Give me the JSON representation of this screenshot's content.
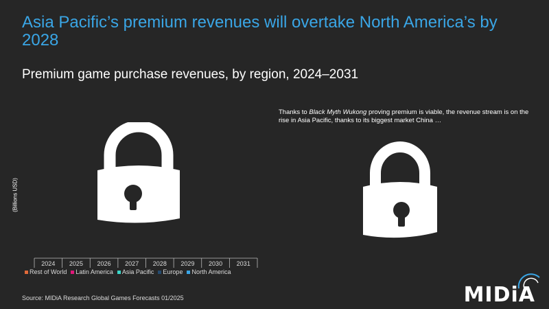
{
  "title": "Asia Pacific’s premium revenues will overtake North America’s by 2028",
  "subtitle": "Premium game purchase revenues, by region, 2024–2031",
  "note_pre": "Thanks to ",
  "note_em": "Black Myth Wukong",
  "note_post": " proving premium is viable, the revenue stream is on the rise in Asia Pacific, thanks to its biggest market China …",
  "source": "Source: MIDiA Research Global Games Forecasts 01/2025",
  "logo": "MIDiA",
  "icons": [
    "lock-icon",
    "lock-icon"
  ],
  "chart_data": {
    "type": "bar",
    "ylabel": "(Billions USD)",
    "categories": [
      "2024",
      "2025",
      "2026",
      "2027",
      "2028",
      "2029",
      "2030",
      "2031"
    ],
    "legend_position": "bottom",
    "series": [
      {
        "name": "Rest of World",
        "color": "#e06a3a"
      },
      {
        "name": "Latin America",
        "color": "#e0177a"
      },
      {
        "name": "Asia Pacific",
        "color": "#3ad6c8"
      },
      {
        "name": "Europe",
        "color": "#244a6e"
      },
      {
        "name": "North America",
        "color": "#3aa6e6"
      }
    ]
  }
}
